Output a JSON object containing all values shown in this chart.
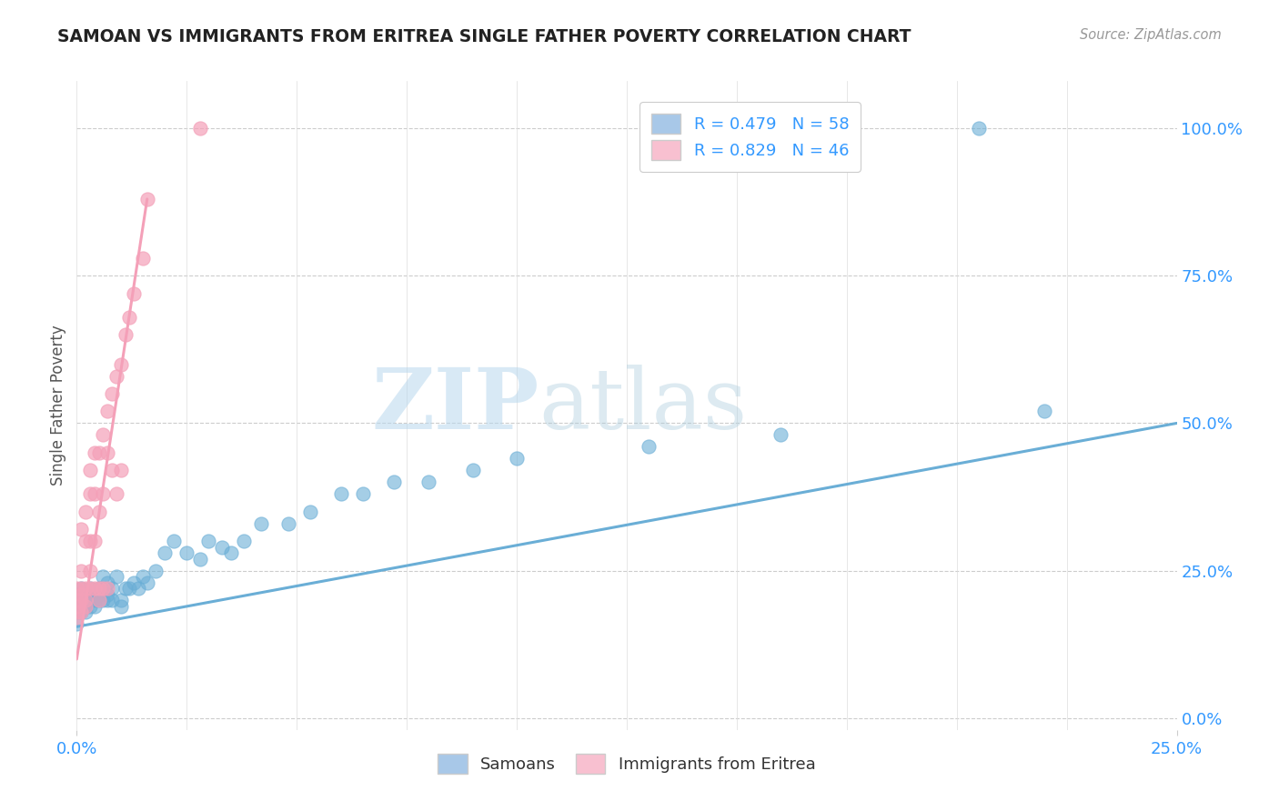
{
  "title": "SAMOAN VS IMMIGRANTS FROM ERITREA SINGLE FATHER POVERTY CORRELATION CHART",
  "source": "Source: ZipAtlas.com",
  "ylabel": "Single Father Poverty",
  "xlim": [
    0.0,
    0.25
  ],
  "ylim": [
    -0.02,
    1.08
  ],
  "samoans_color": "#6aaed6",
  "eritrea_color": "#f4a0b8",
  "samoans_color_light": "#a8c8e8",
  "eritrea_color_light": "#f8c0d0",
  "watermark1": "ZIP",
  "watermark2": "atlas",
  "samoans_x": [
    0.0,
    0.0,
    0.0,
    0.001,
    0.001,
    0.001,
    0.001,
    0.002,
    0.002,
    0.002,
    0.002,
    0.003,
    0.003,
    0.003,
    0.003,
    0.004,
    0.004,
    0.004,
    0.005,
    0.005,
    0.005,
    0.006,
    0.006,
    0.007,
    0.007,
    0.007,
    0.008,
    0.008,
    0.009,
    0.01,
    0.01,
    0.011,
    0.012,
    0.013,
    0.014,
    0.015,
    0.016,
    0.018,
    0.02,
    0.022,
    0.025,
    0.028,
    0.03,
    0.033,
    0.035,
    0.038,
    0.042,
    0.048,
    0.053,
    0.06,
    0.065,
    0.072,
    0.08,
    0.09,
    0.1,
    0.13,
    0.16,
    0.22
  ],
  "samoans_y": [
    0.18,
    0.21,
    0.16,
    0.2,
    0.19,
    0.18,
    0.22,
    0.2,
    0.19,
    0.21,
    0.18,
    0.2,
    0.19,
    0.22,
    0.2,
    0.21,
    0.2,
    0.19,
    0.22,
    0.2,
    0.21,
    0.24,
    0.2,
    0.23,
    0.21,
    0.2,
    0.22,
    0.2,
    0.24,
    0.2,
    0.19,
    0.22,
    0.22,
    0.23,
    0.22,
    0.24,
    0.23,
    0.25,
    0.28,
    0.3,
    0.28,
    0.27,
    0.3,
    0.29,
    0.28,
    0.3,
    0.33,
    0.33,
    0.35,
    0.38,
    0.38,
    0.4,
    0.4,
    0.42,
    0.44,
    0.46,
    0.48,
    0.52
  ],
  "eritrea_x": [
    0.0,
    0.0,
    0.0,
    0.0,
    0.0,
    0.001,
    0.001,
    0.001,
    0.001,
    0.001,
    0.001,
    0.002,
    0.002,
    0.002,
    0.002,
    0.002,
    0.003,
    0.003,
    0.003,
    0.003,
    0.003,
    0.004,
    0.004,
    0.004,
    0.004,
    0.005,
    0.005,
    0.005,
    0.005,
    0.006,
    0.006,
    0.006,
    0.007,
    0.007,
    0.007,
    0.008,
    0.008,
    0.009,
    0.009,
    0.01,
    0.01,
    0.011,
    0.012,
    0.013,
    0.015,
    0.016
  ],
  "eritrea_y": [
    0.18,
    0.2,
    0.22,
    0.19,
    0.17,
    0.21,
    0.18,
    0.2,
    0.25,
    0.32,
    0.22,
    0.19,
    0.22,
    0.3,
    0.35,
    0.2,
    0.25,
    0.3,
    0.38,
    0.42,
    0.22,
    0.3,
    0.38,
    0.45,
    0.22,
    0.35,
    0.45,
    0.22,
    0.2,
    0.38,
    0.48,
    0.22,
    0.45,
    0.52,
    0.22,
    0.55,
    0.42,
    0.58,
    0.38,
    0.6,
    0.42,
    0.65,
    0.68,
    0.72,
    0.78,
    0.88
  ],
  "blue_line": {
    "x0": 0.0,
    "y0": 0.155,
    "x1": 0.25,
    "y1": 0.5
  },
  "pink_line": {
    "x0": 0.0,
    "y0": 0.1,
    "x1": 0.016,
    "y1": 0.88
  }
}
